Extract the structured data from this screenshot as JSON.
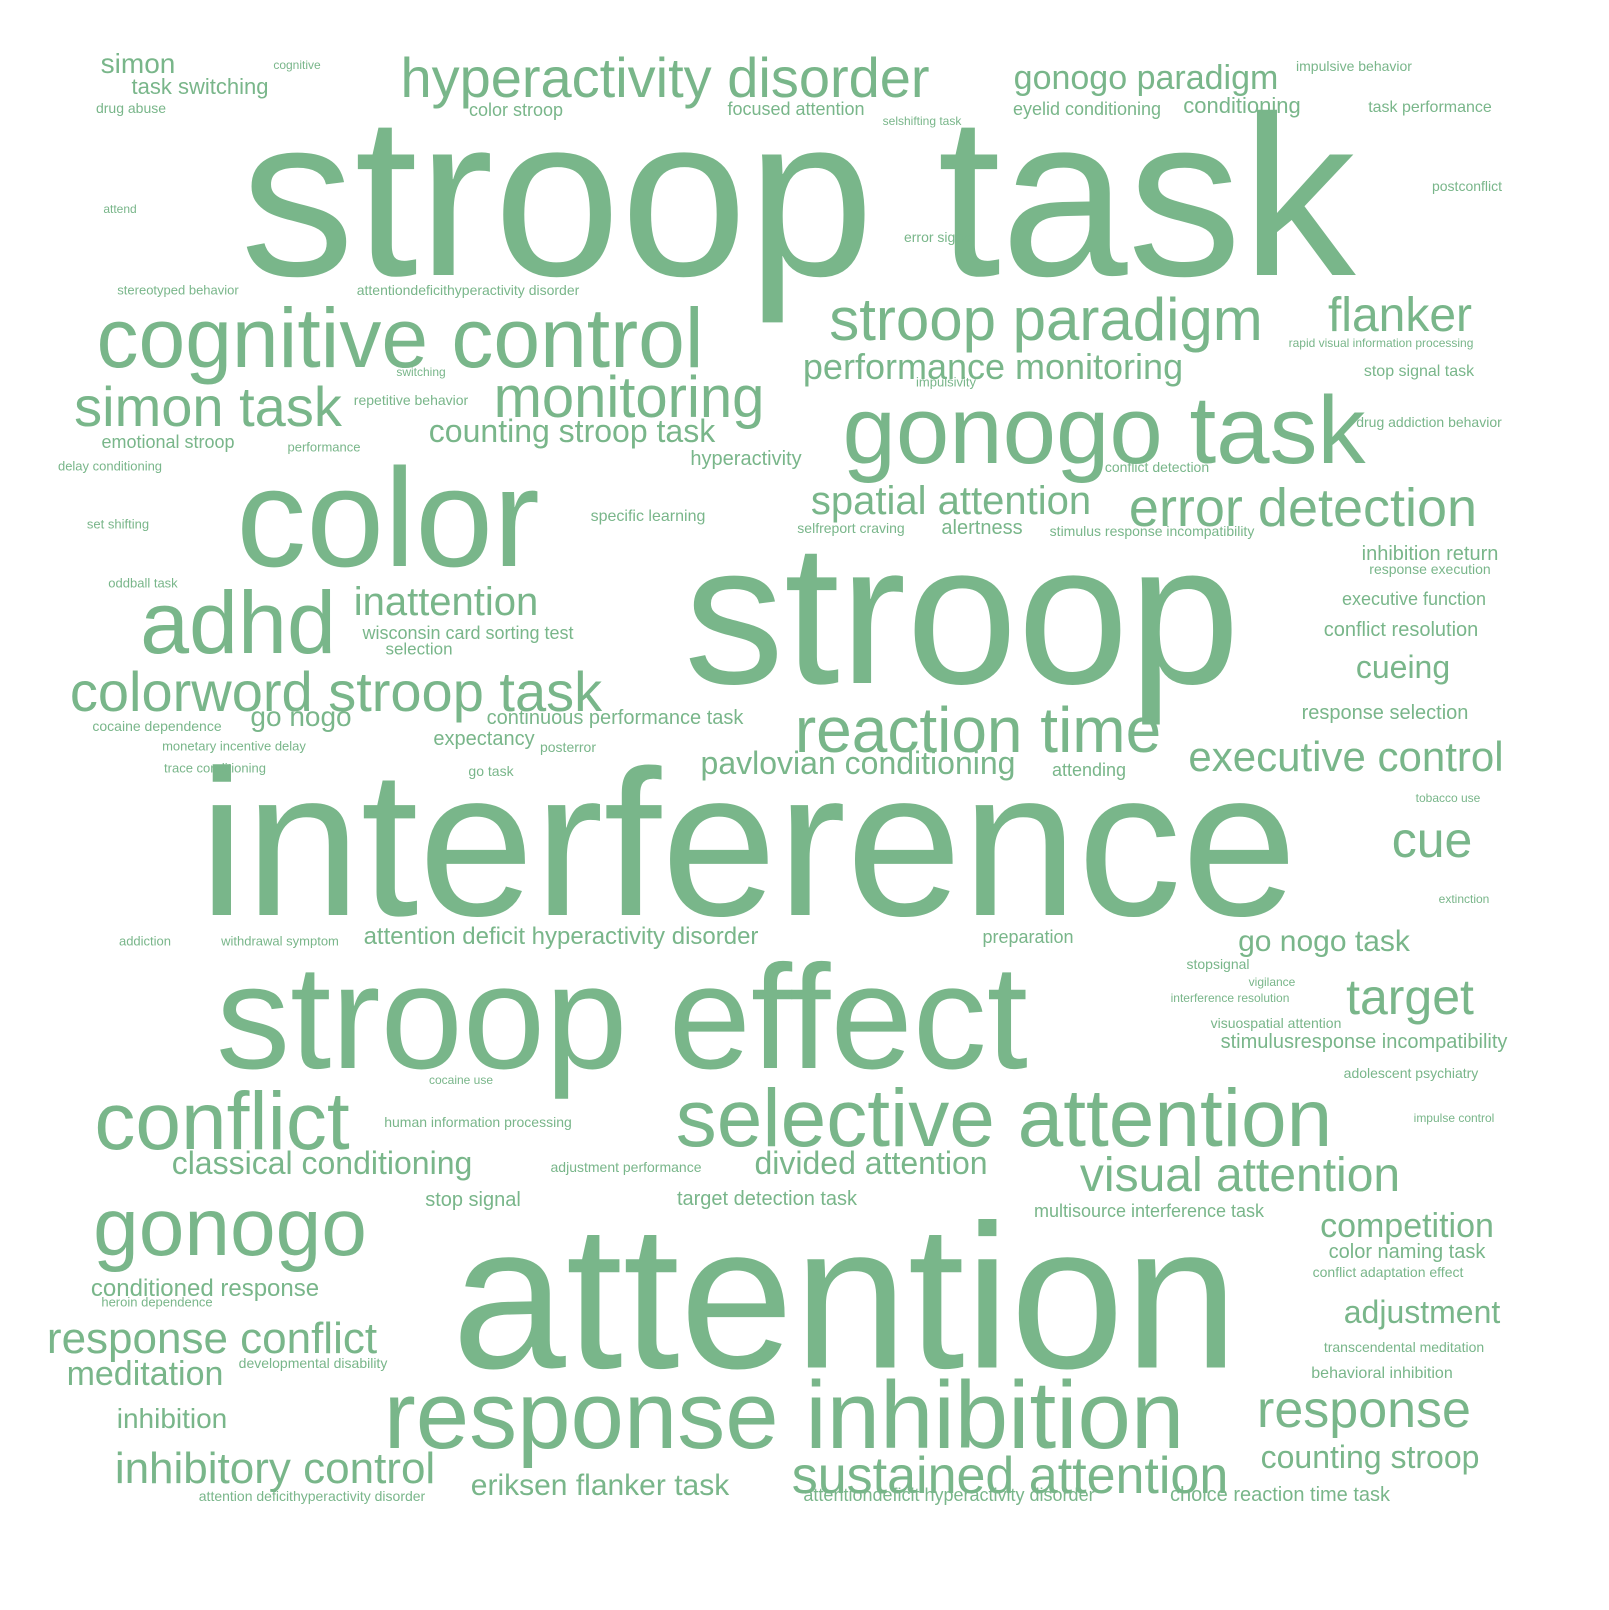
{
  "cloud": {
    "color": "#79b68a",
    "words": [
      "stroop task",
      "interference",
      "attention",
      "stroop",
      "stroop effect",
      "color",
      "gonogo task",
      "cognitive control",
      "response inhibition",
      "selective attention",
      "reaction time",
      "hyperactivity disorder",
      "stroop paradigm",
      "adhd",
      "conflict",
      "gonogo",
      "colorword stroop task",
      "monitoring",
      "error detection",
      "flanker",
      "simon task",
      "visual attention",
      "executive control",
      "sustained attention",
      "response",
      "response conflict",
      "inhibitory control",
      "target",
      "cue",
      "spatial attention",
      "gonogo paradigm",
      "inattention",
      "performance monitoring",
      "classical conditioning",
      "divided attention",
      "competition",
      "adjustment",
      "counting stroop task",
      "pavlovian conditioning",
      "counting stroop",
      "meditation",
      "eriksen flanker task",
      "cueing",
      "go nogo task",
      "go nogo",
      "attention deficit hyperactivity disorder",
      "simon",
      "inhibition",
      "conditioned response",
      "task switching",
      "conditioning",
      "hyperactivity",
      "expectancy",
      "continuous performance task",
      "target detection task",
      "stop signal",
      "color naming task",
      "stimulusresponse incompatibility",
      "executive function",
      "conflict resolution",
      "inhibition return",
      "response selection",
      "alertness",
      "wisconsin card sorting test",
      "selection",
      "multisource interference task",
      "choice reaction time task",
      "focused attention",
      "color stroop",
      "eyelid conditioning",
      "emotional stroop",
      "preparation",
      "attentiondeficit hyperactivity disorder",
      "impulsive behavior",
      "task performance",
      "stop signal task",
      "drug abuse",
      "attending",
      "behavioral inhibition",
      "transcendental meditation",
      "adolescent psychiatry",
      "specific learning",
      "cocaine dependence",
      "attentiondeficithyperactivity disorder",
      "conflict detection",
      "response execution",
      "drug addiction behavior",
      "human information processing",
      "repetitive behavior",
      "selfreport craving",
      "stimulus response incompatibility",
      "conflict adaptation effect",
      "adjustment performance",
      "postconflict",
      "error signal",
      "go task",
      "attention deficithyperactivity disorder",
      "developmental disability",
      "visuospatial attention",
      "posterror",
      "monetary incentive delay",
      "trace conditioning",
      "heroin dependence",
      "delay conditioning",
      "set shifting",
      "oddball task",
      "withdrawal symptom",
      "addiction",
      "stereotyped behavior",
      "performance",
      "impulsivity",
      "switching",
      "stopsignal",
      "cognitive",
      "selshifting task",
      "rapid visual information processing",
      "vigilance",
      "interference resolution",
      "impulse control",
      "tobacco use",
      "extinction",
      "cocaine use",
      "attend"
    ]
  }
}
